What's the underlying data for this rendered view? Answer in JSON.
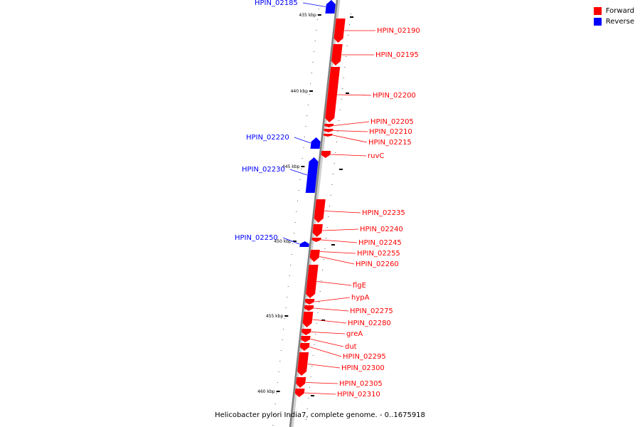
{
  "colors": {
    "forward": "#ff0000",
    "reverse": "#0000ff",
    "backbone": "#808080"
  },
  "legend": {
    "forward_label": "Forward",
    "reverse_label": "Reverse"
  },
  "caption": "Helicobacter pylori India7, complete genome. - 0..1675918",
  "ruler": [
    "435 kbp",
    "440 kbp",
    "445 kbp",
    "450 kbp",
    "455 kbp",
    "460 kbp"
  ],
  "genes": [
    {
      "name": "HPIN_02185",
      "strand": "reverse"
    },
    {
      "name": "HPIN_02190",
      "strand": "forward"
    },
    {
      "name": "HPIN_02195",
      "strand": "forward"
    },
    {
      "name": "HPIN_02200",
      "strand": "forward"
    },
    {
      "name": "HPIN_02205",
      "strand": "forward"
    },
    {
      "name": "HPIN_02210",
      "strand": "forward"
    },
    {
      "name": "HPIN_02215",
      "strand": "forward"
    },
    {
      "name": "ruvC",
      "strand": "forward"
    },
    {
      "name": "HPIN_02220",
      "strand": "reverse"
    },
    {
      "name": "HPIN_02230",
      "strand": "reverse"
    },
    {
      "name": "HPIN_02235",
      "strand": "forward"
    },
    {
      "name": "HPIN_02240",
      "strand": "forward"
    },
    {
      "name": "HPIN_02245",
      "strand": "forward"
    },
    {
      "name": "HPIN_02250",
      "strand": "reverse"
    },
    {
      "name": "HPIN_02255",
      "strand": "forward"
    },
    {
      "name": "HPIN_02260",
      "strand": "forward"
    },
    {
      "name": "flgE",
      "strand": "forward"
    },
    {
      "name": "hypA",
      "strand": "forward"
    },
    {
      "name": "HPIN_02275",
      "strand": "forward"
    },
    {
      "name": "HPIN_02280",
      "strand": "forward"
    },
    {
      "name": "greA",
      "strand": "forward"
    },
    {
      "name": "dut",
      "strand": "forward"
    },
    {
      "name": "HPIN_02295",
      "strand": "forward"
    },
    {
      "name": "HPIN_02300",
      "strand": "forward"
    },
    {
      "name": "HPIN_02305",
      "strand": "forward"
    },
    {
      "name": "HPIN_02310",
      "strand": "forward"
    }
  ]
}
